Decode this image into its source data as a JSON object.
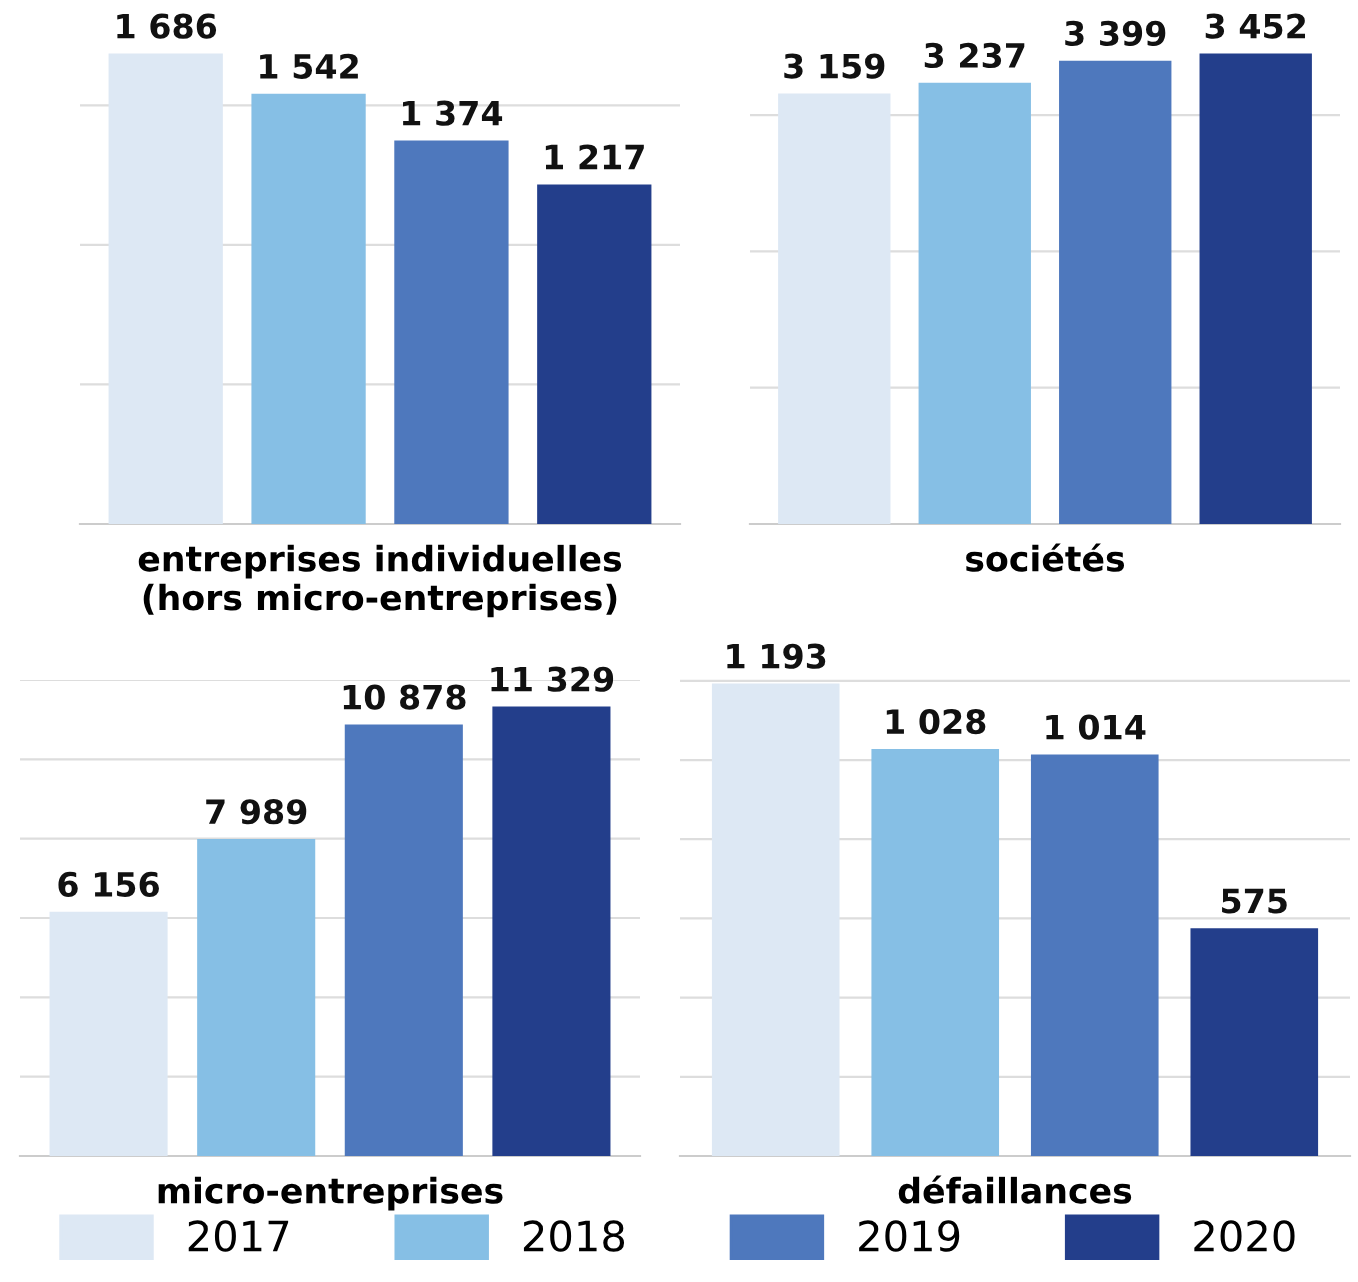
{
  "chart_data": [
    {
      "type": "bar",
      "xlabel": "entreprises individuelles\n(hors micro-entreprises)",
      "categories": [
        null
      ],
      "yticks": [
        {
          "value": 0,
          "label": null
        },
        {
          "value": 500,
          "label": null
        },
        {
          "value": 1000,
          "label": null
        },
        {
          "value": 1500,
          "label": null
        }
      ],
      "grid": "y",
      "data_labels": true,
      "legend": "bottom",
      "series": [
        {
          "name": "2017",
          "color": "#dde8f4",
          "values": [
            1686
          ]
        },
        {
          "name": "2018",
          "color": "#86bfe5",
          "values": [
            1542
          ]
        },
        {
          "name": "2019",
          "color": "#4e78bd",
          "values": [
            1374
          ]
        },
        {
          "name": "2020",
          "color": "#233e8b",
          "values": [
            1217
          ]
        }
      ]
    },
    {
      "type": "bar",
      "xlabel": "sociétés",
      "categories": [
        null
      ],
      "yticks": [
        {
          "value": 0,
          "label": null
        },
        {
          "value": 1000,
          "label": null
        },
        {
          "value": 2000,
          "label": null
        },
        {
          "value": 3000,
          "label": null
        }
      ],
      "grid": "y",
      "data_labels": true,
      "legend": "bottom",
      "series": [
        {
          "name": "2017",
          "color": "#dde8f4",
          "values": [
            3159
          ]
        },
        {
          "name": "2018",
          "color": "#86bfe5",
          "values": [
            3237
          ]
        },
        {
          "name": "2019",
          "color": "#4e78bd",
          "values": [
            3399
          ]
        },
        {
          "name": "2020",
          "color": "#233e8b",
          "values": [
            3452
          ]
        }
      ]
    },
    {
      "type": "bar",
      "xlabel": "micro-entreprises",
      "categories": [
        null
      ],
      "ylim": [
        0,
        12000
      ],
      "yticks": [
        {
          "value": 0,
          "label": null
        },
        {
          "value": 2000,
          "label": null
        },
        {
          "value": 4000,
          "label": null
        },
        {
          "value": 6000,
          "label": null
        },
        {
          "value": 8000,
          "label": null
        },
        {
          "value": 10000,
          "label": null
        },
        {
          "value": 12000,
          "label": null
        }
      ],
      "grid": "y",
      "data_labels": true,
      "legend": "bottom",
      "series": [
        {
          "name": "2017",
          "color": "#dde8f4",
          "values": [
            6156
          ]
        },
        {
          "name": "2018",
          "color": "#86bfe5",
          "values": [
            7989
          ]
        },
        {
          "name": "2019",
          "color": "#4e78bd",
          "values": [
            10878
          ]
        },
        {
          "name": "2020",
          "color": "#233e8b",
          "values": [
            11329
          ]
        }
      ]
    },
    {
      "type": "bar",
      "xlabel": "défaillances",
      "categories": [
        null
      ],
      "yticks": [
        {
          "value": 0,
          "label": null
        },
        {
          "value": 200,
          "label": null
        },
        {
          "value": 400,
          "label": null
        },
        {
          "value": 600,
          "label": null
        },
        {
          "value": 800,
          "label": null
        },
        {
          "value": 1000,
          "label": null
        },
        {
          "value": 1200,
          "label": null
        }
      ],
      "grid": "y",
      "data_labels": true,
      "legend": "bottom",
      "series": [
        {
          "name": "2017",
          "color": "#dde8f4",
          "values": [
            1193
          ]
        },
        {
          "name": "2018",
          "color": "#86bfe5",
          "values": [
            1028
          ]
        },
        {
          "name": "2019",
          "color": "#4e78bd",
          "values": [
            1014
          ]
        },
        {
          "name": "2020",
          "color": "#233e8b",
          "values": [
            575
          ]
        }
      ]
    }
  ]
}
